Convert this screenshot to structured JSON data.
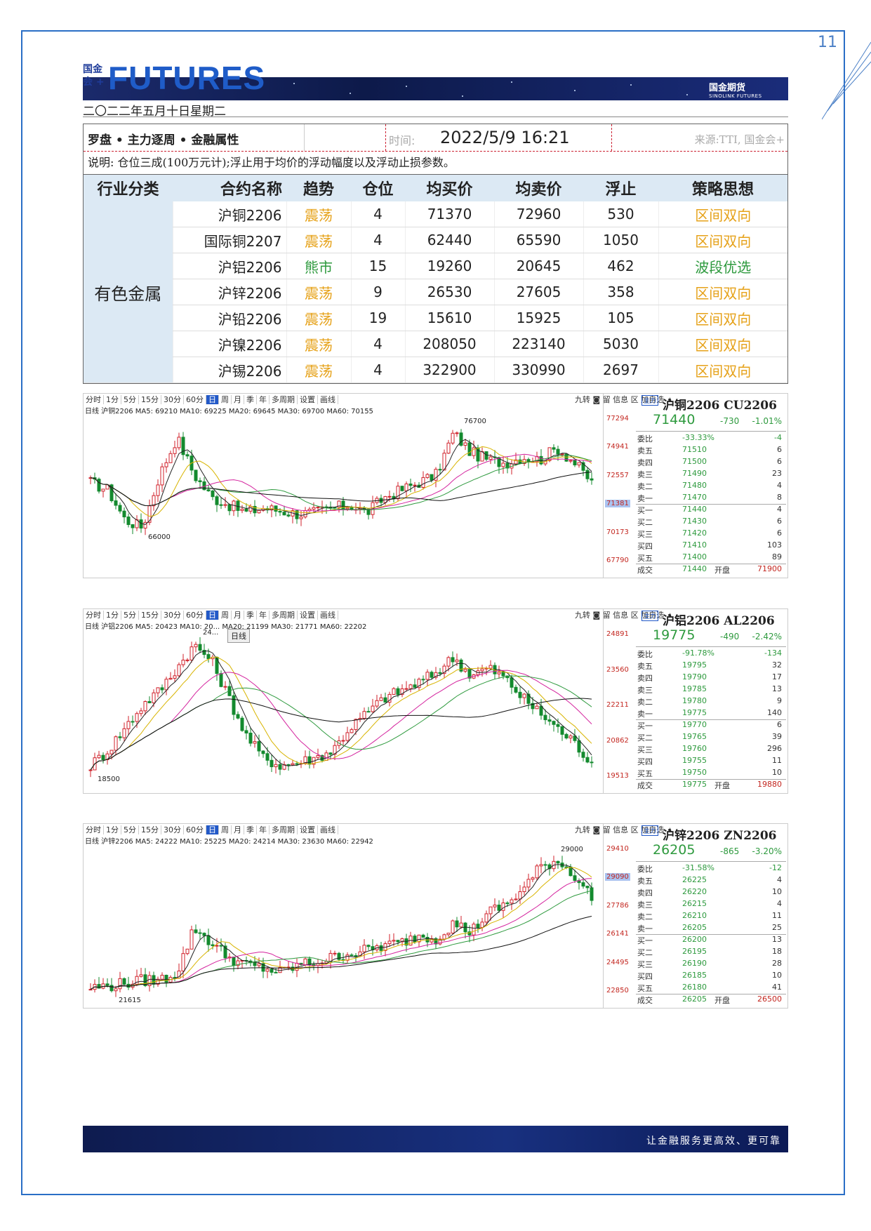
{
  "page_number": "11",
  "header": {
    "logo_small_1": "国金",
    "logo_small_2": "会 +",
    "brand": "FUTURES",
    "company": "国金期货",
    "company_en": "SINOLINK FUTURES",
    "date": "二〇二二年五月十日星期二"
  },
  "table": {
    "title": "罗盘 • 主力逐周 • 金融属性",
    "time_label": "时间:",
    "time_value": "2022/5/9 16:21",
    "source": "来源:TTI, 国金会+",
    "note": "说明: 仓位三成(100万元计);浮止用于均价的浮动幅度以及浮动止损参数。",
    "columns": [
      "行业分类",
      "合约名称",
      "趋势",
      "仓位",
      "均买价",
      "均卖价",
      "浮止",
      "策略思想"
    ],
    "category": "有色金属",
    "rows": [
      {
        "name": "沪铜2206",
        "trend": "震荡",
        "pos": "4",
        "buy": "71370",
        "sell": "72960",
        "stop": "530",
        "strategy": "区间双向"
      },
      {
        "name": "国际铜2207",
        "trend": "震荡",
        "pos": "4",
        "buy": "62440",
        "sell": "65590",
        "stop": "1050",
        "strategy": "区间双向"
      },
      {
        "name": "沪铝2206",
        "trend": "熊市",
        "pos": "15",
        "buy": "19260",
        "sell": "20645",
        "stop": "462",
        "strategy": "波段优选"
      },
      {
        "name": "沪锌2206",
        "trend": "震荡",
        "pos": "9",
        "buy": "26530",
        "sell": "27605",
        "stop": "358",
        "strategy": "区间双向"
      },
      {
        "name": "沪铅2206",
        "trend": "震荡",
        "pos": "19",
        "buy": "15610",
        "sell": "15925",
        "stop": "105",
        "strategy": "区间双向"
      },
      {
        "name": "沪镍2206",
        "trend": "震荡",
        "pos": "4",
        "buy": "208050",
        "sell": "223140",
        "stop": "5030",
        "strategy": "区间双向"
      },
      {
        "name": "沪锡2206",
        "trend": "震荡",
        "pos": "4",
        "buy": "322900",
        "sell": "330990",
        "stop": "2697",
        "strategy": "区间双向"
      }
    ]
  },
  "chart_toolbar": [
    "分时",
    "1分",
    "5分",
    "15分",
    "30分",
    "60分",
    "日",
    "周",
    "月",
    "季",
    "年",
    "多周期",
    "设置",
    "画线"
  ],
  "chart_toolbar_right": "九转 ◙ 留 信息 区 加自选 ➧",
  "charts": [
    {
      "ma_text": "日线 沪铜2206 MA5: 69210 MA10: 69225 MA20: 69645 MA30: 69700 MA60: 70155",
      "y_ticks": [
        "77294",
        "74941",
        "72557",
        "71381",
        "70173",
        "67790"
      ],
      "highlight_tick": "71381",
      "high_label": "76700",
      "low_label": "66000",
      "quote": {
        "tag": "主力",
        "title": "沪铜2206 CU2206",
        "price": "71440",
        "change": "-730",
        "pct": "-1.01%",
        "weibi_label": "委比",
        "weibi": "-33.33%",
        "weibi_v": "-4",
        "asks": [
          [
            "卖五",
            "71510",
            "6"
          ],
          [
            "卖四",
            "71500",
            "6"
          ],
          [
            "卖三",
            "71490",
            "23"
          ],
          [
            "卖二",
            "71480",
            "4"
          ],
          [
            "卖一",
            "71470",
            "8"
          ]
        ],
        "bids": [
          [
            "买一",
            "71440",
            "4"
          ],
          [
            "买二",
            "71430",
            "6"
          ],
          [
            "买三",
            "71420",
            "6"
          ],
          [
            "买四",
            "71410",
            "103"
          ],
          [
            "买五",
            "71400",
            "89"
          ]
        ],
        "last": [
          "成交",
          "71440",
          "开盘",
          "71900"
        ]
      }
    },
    {
      "ma_text": "日线 沪铝2206 MA5: 20423 MA10: 20... MA20: 21199 MA30: 21771 MA60: 22202",
      "tooltip": "日线",
      "y_ticks": [
        "24891",
        "23560",
        "22211",
        "20862",
        "19513"
      ],
      "high_label": "24...",
      "low_label": "18500",
      "quote": {
        "tag": "主力",
        "title": "沪铝2206 AL2206",
        "price": "19775",
        "change": "-490",
        "pct": "-2.42%",
        "weibi_label": "委比",
        "weibi": "-91.78%",
        "weibi_v": "-134",
        "asks": [
          [
            "卖五",
            "19795",
            "32"
          ],
          [
            "卖四",
            "19790",
            "17"
          ],
          [
            "卖三",
            "19785",
            "13"
          ],
          [
            "卖二",
            "19780",
            "9"
          ],
          [
            "卖一",
            "19775",
            "140"
          ]
        ],
        "bids": [
          [
            "买一",
            "19770",
            "6"
          ],
          [
            "买二",
            "19765",
            "39"
          ],
          [
            "买三",
            "19760",
            "296"
          ],
          [
            "买四",
            "19755",
            "11"
          ],
          [
            "买五",
            "19750",
            "10"
          ]
        ],
        "last": [
          "成交",
          "19775",
          "开盘",
          "19880"
        ]
      }
    },
    {
      "ma_text": "日线 沪锌2206 MA5: 24222 MA10: 25225 MA20: 24214 MA30: 23630 MA60: 22942",
      "y_ticks": [
        "29410",
        "29090",
        "27786",
        "26141",
        "24495",
        "22850"
      ],
      "highlight_tick": "29090",
      "high_label": "29000",
      "low_label": "21615",
      "quote": {
        "tag": "主力",
        "title": "沪锌2206 ZN2206",
        "price": "26205",
        "change": "-865",
        "pct": "-3.20%",
        "weibi_label": "委比",
        "weibi": "-31.58%",
        "weibi_v": "-12",
        "asks": [
          [
            "卖五",
            "26225",
            "4"
          ],
          [
            "卖四",
            "26220",
            "10"
          ],
          [
            "卖三",
            "26215",
            "4"
          ],
          [
            "卖二",
            "26210",
            "11"
          ],
          [
            "卖一",
            "26205",
            "25"
          ]
        ],
        "bids": [
          [
            "买一",
            "26200",
            "13"
          ],
          [
            "买二",
            "26195",
            "18"
          ],
          [
            "买三",
            "26190",
            "28"
          ],
          [
            "买四",
            "26185",
            "10"
          ],
          [
            "买五",
            "26180",
            "41"
          ]
        ],
        "last": [
          "成交",
          "26205",
          "开盘",
          "26500"
        ]
      }
    }
  ],
  "footer": {
    "slogan": "让金融服务更高效、更可靠"
  },
  "colors": {
    "accent": "#2259c8",
    "up": "#c3261f",
    "down": "#2e9a3e",
    "trend_range": "#e6a21a",
    "trend_bear": "#2e9a3e",
    "header_fill": "#dce9f4"
  }
}
